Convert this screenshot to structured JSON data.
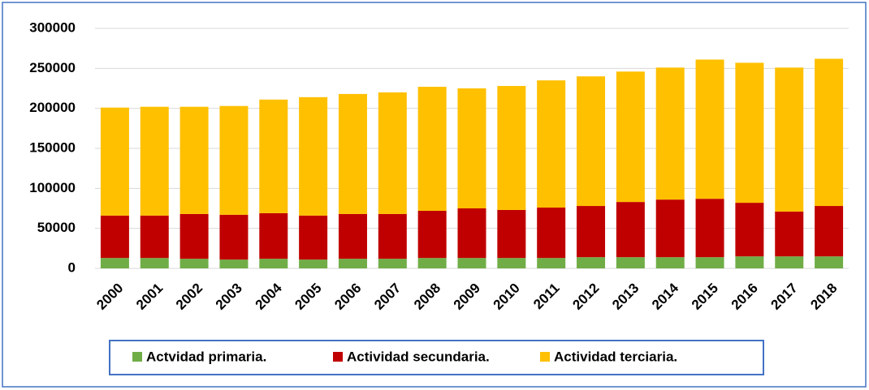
{
  "chart_data": {
    "type": "stacked_bar",
    "categories": [
      "2000",
      "2001",
      "2002",
      "2003",
      "2004",
      "2005",
      "2006",
      "2007",
      "2008",
      "2009",
      "2010",
      "2011",
      "2012",
      "2013",
      "2014",
      "2015",
      "2016",
      "2017",
      "2018"
    ],
    "series": [
      {
        "name": "Actvidad primaria.",
        "color": "#70ad47",
        "values": [
          13000,
          13000,
          12000,
          11000,
          12000,
          11000,
          12000,
          12000,
          13000,
          13000,
          13000,
          13000,
          14000,
          14000,
          14000,
          14000,
          15000,
          15000,
          15000
        ]
      },
      {
        "name": "Actividad secundaria.",
        "color": "#c00000",
        "values": [
          53000,
          53000,
          56000,
          56000,
          57000,
          55000,
          56000,
          56000,
          59000,
          62000,
          60000,
          63000,
          64000,
          69000,
          72000,
          73000,
          67000,
          56000,
          63000
        ]
      },
      {
        "name": "Actividad terciaria.",
        "color": "#ffc000",
        "values": [
          135000,
          136000,
          134000,
          136000,
          142000,
          148000,
          150000,
          152000,
          155000,
          150000,
          155000,
          159000,
          162000,
          163000,
          165000,
          174000,
          175000,
          180000,
          184000
        ]
      }
    ],
    "ylim": [
      0,
      300000
    ],
    "yticks": [
      0,
      50000,
      100000,
      150000,
      200000,
      250000,
      300000
    ],
    "grid": true,
    "legend": "bottom"
  }
}
